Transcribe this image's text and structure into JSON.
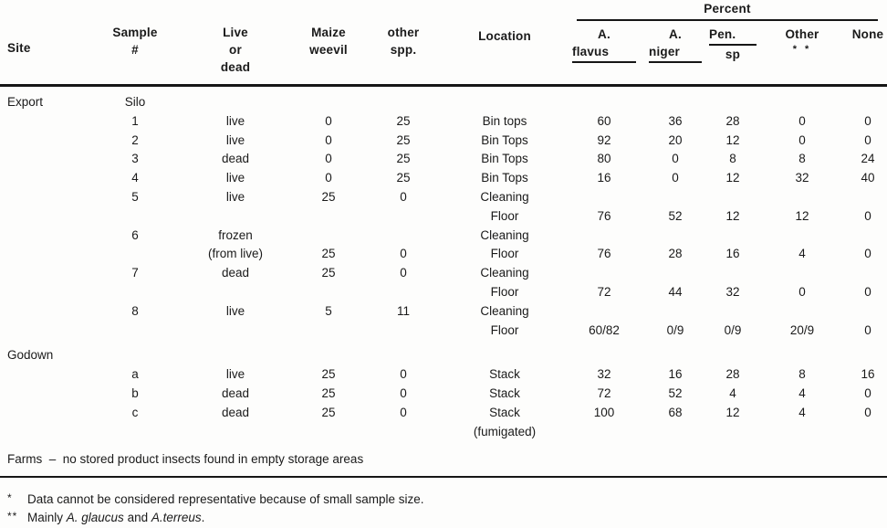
{
  "header": {
    "site": "Site",
    "sample": [
      "Sample",
      "#"
    ],
    "live_or_dead": [
      "Live",
      "or",
      "dead"
    ],
    "maize_weevil": [
      "Maize",
      "weevil"
    ],
    "other_spp": [
      "other",
      "spp."
    ],
    "location": "Location",
    "percent_group": "Percent",
    "a_flavus": [
      "A.",
      "flavus"
    ],
    "a_niger": [
      "A.",
      "niger"
    ],
    "pen_sp": [
      "Pen.",
      "sp"
    ],
    "other": [
      "Other",
      "* *"
    ],
    "none": "None"
  },
  "table": {
    "lines": [
      {
        "site": "Export",
        "sample": "Silo"
      },
      {
        "sample": "1",
        "live_or_dead": "live",
        "maize_weevil": "0",
        "other_spp": "25",
        "location": "Bin tops",
        "a_flavus": "60",
        "a_niger": "36",
        "pen_sp": "28",
        "other_pct": "0",
        "none": "0"
      },
      {
        "sample": "2",
        "live_or_dead": "live",
        "maize_weevil": "0",
        "other_spp": "25",
        "location": "Bin Tops",
        "a_flavus": "92",
        "a_niger": "20",
        "pen_sp": "12",
        "other_pct": "0",
        "none": "0"
      },
      {
        "sample": "3",
        "live_or_dead": "dead",
        "maize_weevil": "0",
        "other_spp": "25",
        "location": "Bin Tops",
        "a_flavus": "80",
        "a_niger": "0",
        "pen_sp": "8",
        "other_pct": "8",
        "none": "24"
      },
      {
        "sample": "4",
        "live_or_dead": "live",
        "maize_weevil": "0",
        "other_spp": "25",
        "location": "Bin Tops",
        "a_flavus": "16",
        "a_niger": "0",
        "pen_sp": "12",
        "other_pct": "32",
        "none": "40"
      },
      {
        "sample": "5",
        "live_or_dead": "live",
        "maize_weevil": "25",
        "other_spp": "0",
        "location": "Cleaning"
      },
      {
        "location": "Floor",
        "a_flavus": "76",
        "a_niger": "52",
        "pen_sp": "12",
        "other_pct": "12",
        "none": "0"
      },
      {
        "sample": "6",
        "live_or_dead": "frozen",
        "location": "Cleaning"
      },
      {
        "live_or_dead": "(from live)",
        "maize_weevil": "25",
        "other_spp": "0",
        "location": "Floor",
        "a_flavus": "76",
        "a_niger": "28",
        "pen_sp": "16",
        "other_pct": "4",
        "none": "0"
      },
      {
        "sample": "7",
        "live_or_dead": "dead",
        "maize_weevil": "25",
        "other_spp": "0",
        "location": "Cleaning"
      },
      {
        "location": "Floor",
        "a_flavus": "72",
        "a_niger": "44",
        "pen_sp": "32",
        "other_pct": "0",
        "none": "0"
      },
      {
        "sample": "8",
        "live_or_dead": "live",
        "maize_weevil": "5",
        "other_spp": "11",
        "location": "Cleaning"
      },
      {
        "location": "Floor",
        "a_flavus": "60/82",
        "a_niger": "0/9",
        "pen_sp": "0/9",
        "other_pct": "20/9",
        "none": "0"
      },
      {
        "site": "Godown",
        "gap_before": true
      },
      {
        "sample": "a",
        "live_or_dead": "live",
        "maize_weevil": "25",
        "other_spp": "0",
        "location": "Stack",
        "a_flavus": "32",
        "a_niger": "16",
        "pen_sp": "28",
        "other_pct": "8",
        "none": "16"
      },
      {
        "sample": "b",
        "live_or_dead": "dead",
        "maize_weevil": "25",
        "other_spp": "0",
        "location": "Stack",
        "a_flavus": "72",
        "a_niger": "52",
        "pen_sp": "4",
        "other_pct": "4",
        "none": "0"
      },
      {
        "sample": "c",
        "live_or_dead": "dead",
        "maize_weevil": "25",
        "other_spp": "0",
        "location": "Stack",
        "a_flavus": "100",
        "a_niger": "68",
        "pen_sp": "12",
        "other_pct": "4",
        "none": "0"
      },
      {
        "location": "(fumigated)"
      }
    ]
  },
  "farms_note": "Farms  –  no stored product insects found in empty storage areas",
  "footnotes": {
    "note1_marker": "*",
    "note1_text": "Data cannot be considered representative because of small sample size.",
    "note2_marker": "**",
    "note2_parts": [
      "Mainly ",
      "A. glaucus",
      " and ",
      "A.terreus",
      "."
    ]
  }
}
